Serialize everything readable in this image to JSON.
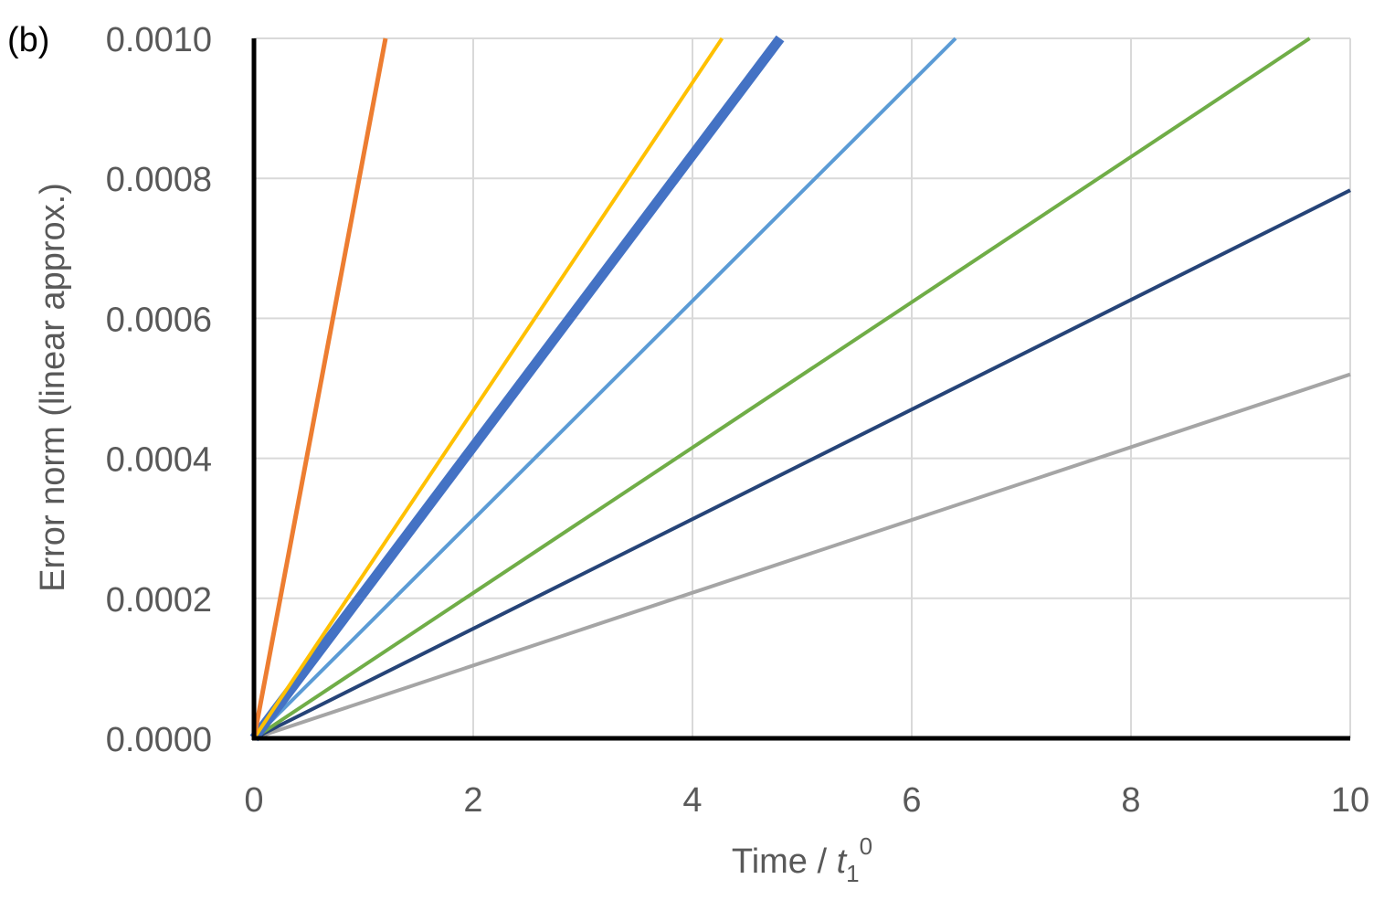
{
  "chart_data": {
    "type": "line",
    "panel_label": "(b)",
    "title": "",
    "xlabel": {
      "main": "Time / ",
      "var": "t",
      "sub": "1",
      "sup": "0"
    },
    "ylabel": "Error norm (linear approx.)",
    "xlim": [
      0,
      10
    ],
    "ylim": [
      0,
      0.001
    ],
    "xticks": [
      0,
      2,
      4,
      6,
      8,
      10
    ],
    "yticks": [
      0,
      0.0002,
      0.0004,
      0.0006,
      0.0008,
      0.001
    ],
    "xtick_labels": [
      "0",
      "2",
      "4",
      "6",
      "8",
      "10"
    ],
    "ytick_labels": [
      "0.0000",
      "0.0002",
      "0.0004",
      "0.0006",
      "0.0008",
      "0.0010"
    ],
    "grid": true,
    "legend": "none",
    "series": [
      {
        "color": "#A5A5A5",
        "width": 4,
        "x": [
          0,
          10
        ],
        "y": [
          0,
          0.00052
        ]
      },
      {
        "color": "#264478",
        "width": 4,
        "x": [
          0,
          10
        ],
        "y": [
          0,
          0.000783
        ]
      },
      {
        "color": "#70AD47",
        "width": 4,
        "x": [
          0,
          9.63
        ],
        "y": [
          0,
          0.001
        ]
      },
      {
        "color": "#5B9BD5",
        "width": 4,
        "x": [
          0,
          6.4
        ],
        "y": [
          0,
          0.001
        ]
      },
      {
        "color": "#4472C4",
        "width": 11,
        "x": [
          0,
          4.8
        ],
        "y": [
          0,
          0.001
        ]
      },
      {
        "color": "#FFC000",
        "width": 4,
        "x": [
          0,
          4.27
        ],
        "y": [
          0,
          0.001
        ]
      },
      {
        "color": "#ED7D31",
        "width": 5,
        "x": [
          0,
          1.2
        ],
        "y": [
          0,
          0.001
        ]
      }
    ]
  }
}
